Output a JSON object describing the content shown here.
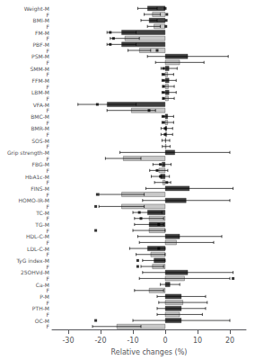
{
  "chart_data": {
    "type": "bar",
    "orientation": "horizontal",
    "xlabel": "Relative changes (%)",
    "categories": [
      "Weight-M",
      "F",
      "BMI-M",
      "F",
      "FM-M",
      "F",
      "PBF-M",
      "F",
      "PSM-M",
      "F",
      "SMM-M",
      "F",
      "FFM-M",
      "F",
      "LBM-M",
      "F",
      "VFA-M",
      "F",
      "BMC-M",
      "F",
      "BMR-M",
      "F",
      "SOS-M",
      "F",
      "Grip strength-M",
      "F",
      "FBG-M",
      "F",
      "HbA1c-M",
      "F",
      "FINS-M",
      "F",
      "HOMO-IR-M",
      "F",
      "TC-M",
      "F",
      "TG-M",
      "F",
      "HDL-C-M",
      "F",
      "LDL-C-M",
      "F",
      "TyG index-M",
      "F",
      "25OHVd-M",
      "F",
      "Ca-M",
      "F",
      "P-M",
      "F",
      "PTH-M",
      "F",
      "OC-M",
      "F"
    ],
    "values": [
      -5.5,
      -4.0,
      -5.0,
      -3.5,
      -13.5,
      -12.5,
      -13.5,
      -8.0,
      7.0,
      4.5,
      1.2,
      0.8,
      1.2,
      1.0,
      1.2,
      1.0,
      -18.0,
      -10.5,
      0.8,
      0.8,
      0.5,
      0.5,
      0.2,
      0.3,
      3.0,
      -13.0,
      -1.0,
      -2.0,
      -1.5,
      -0.8,
      7.5,
      -13.5,
      6.5,
      -13.5,
      -5.5,
      -5.0,
      -5.0,
      -5.0,
      4.5,
      3.5,
      -5.5,
      -4.5,
      -3.5,
      -4.0,
      7.0,
      6.0,
      1.5,
      -5.0,
      5.0,
      5.5,
      5.0,
      4.5,
      5.0,
      -15.0
    ],
    "errors": [
      3.0,
      2.5,
      2.5,
      2.0,
      4.5,
      4.5,
      4.5,
      3.5,
      12.5,
      7.5,
      2.5,
      1.8,
      2.2,
      1.8,
      2.2,
      1.8,
      9.0,
      7.5,
      1.8,
      1.8,
      1.8,
      1.8,
      1.2,
      1.2,
      17.0,
      5.5,
      2.8,
      2.8,
      2.8,
      2.5,
      13.5,
      7.0,
      13.5,
      7.0,
      4.5,
      4.5,
      4.5,
      5.0,
      13.0,
      11.5,
      5.5,
      4.5,
      3.5,
      3.5,
      14.0,
      14.0,
      3.0,
      4.5,
      7.5,
      7.5,
      7.5,
      7.0,
      15.0,
      7.5
    ],
    "dots": [
      0.0,
      0.5,
      0.3,
      0.2,
      -17.0,
      -16.0,
      -17.0,
      -2.5,
      null,
      null,
      -0.5,
      -0.5,
      -0.5,
      -0.5,
      -0.5,
      -0.5,
      -21.0,
      -5.0,
      -0.5,
      -0.5,
      0.0,
      0.0,
      null,
      null,
      null,
      null,
      -1.5,
      -2.5,
      -1.5,
      0.5,
      null,
      -21.0,
      null,
      -21.5,
      -8.0,
      -7.5,
      -2.0,
      -21.5,
      null,
      null,
      -2.0,
      null,
      -8.5,
      -8.5,
      null,
      21.0,
      null,
      null,
      null,
      null,
      null,
      null,
      -21.5,
      null
    ],
    "marker": "square",
    "colors": [
      "#404040",
      "#c8c8c8",
      "#404040",
      "#c8c8c8",
      "#404040",
      "#c8c8c8",
      "#404040",
      "#c8c8c8",
      "#404040",
      "#c8c8c8",
      "#404040",
      "#c8c8c8",
      "#404040",
      "#c8c8c8",
      "#404040",
      "#c8c8c8",
      "#404040",
      "#c8c8c8",
      "#404040",
      "#c8c8c8",
      "#404040",
      "#c8c8c8",
      "#404040",
      "#c8c8c8",
      "#404040",
      "#c8c8c8",
      "#404040",
      "#c8c8c8",
      "#404040",
      "#c8c8c8",
      "#404040",
      "#c8c8c8",
      "#404040",
      "#c8c8c8",
      "#404040",
      "#c8c8c8",
      "#404040",
      "#c8c8c8",
      "#404040",
      "#c8c8c8",
      "#404040",
      "#c8c8c8",
      "#404040",
      "#c8c8c8",
      "#404040",
      "#c8c8c8",
      "#404040",
      "#c8c8c8",
      "#404040",
      "#c8c8c8",
      "#404040",
      "#c8c8c8",
      "#404040",
      "#c8c8c8"
    ],
    "xlim": [
      -35,
      25
    ],
    "xticks": [
      -30,
      -20,
      -10,
      0,
      10,
      20
    ],
    "grid": false
  }
}
